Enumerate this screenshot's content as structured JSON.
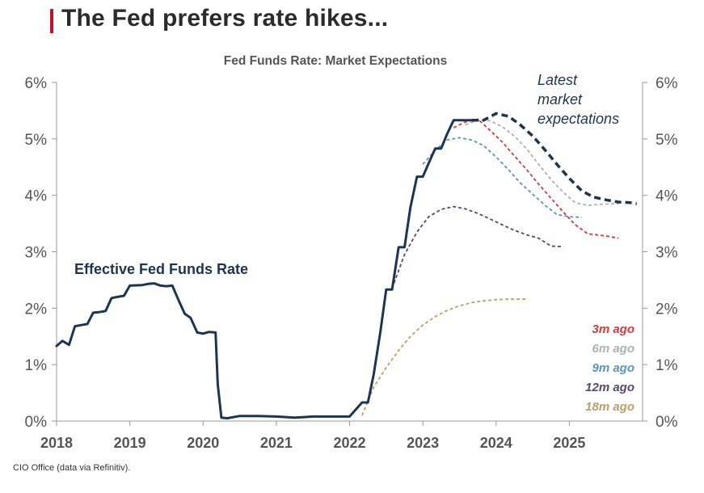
{
  "page": {
    "title": "The Fed prefers rate hikes...",
    "footer": "CIO Office (data via Refinitiv)."
  },
  "chart_data": {
    "type": "line",
    "title": "Fed Funds Rate: Market Expectations",
    "xlabel": "",
    "ylabel": "",
    "xlim": [
      2018,
      2026
    ],
    "ylim": [
      0,
      6
    ],
    "x_ticks": [
      2018,
      2019,
      2020,
      2021,
      2022,
      2023,
      2024,
      2025
    ],
    "x_tick_labels": [
      "2018",
      "2019",
      "2020",
      "2021",
      "2022",
      "2023",
      "2024",
      "2025"
    ],
    "y_ticks": [
      0,
      1,
      2,
      3,
      4,
      5,
      6
    ],
    "y_tick_labels": [
      "0%",
      "1%",
      "2%",
      "3%",
      "4%",
      "5%",
      "6%"
    ],
    "annotations": {
      "effr_label": "Effective Fed Funds Rate",
      "latest_label": [
        "Latest",
        "market",
        "expectations"
      ]
    },
    "series": [
      {
        "name": "Effective Fed Funds Rate",
        "color": "#1c3550",
        "style": "solid",
        "x": [
          2018.0,
          2018.08,
          2018.17,
          2018.25,
          2018.33,
          2018.42,
          2018.5,
          2018.58,
          2018.67,
          2018.75,
          2018.83,
          2018.92,
          2019.0,
          2019.17,
          2019.25,
          2019.33,
          2019.42,
          2019.5,
          2019.58,
          2019.67,
          2019.75,
          2019.83,
          2019.92,
          2020.0,
          2020.08,
          2020.17,
          2020.2,
          2020.25,
          2020.33,
          2020.5,
          2020.75,
          2021.0,
          2021.25,
          2021.5,
          2021.75,
          2022.0,
          2022.17,
          2022.25,
          2022.33,
          2022.42,
          2022.5,
          2022.58,
          2022.67,
          2022.75,
          2022.83,
          2022.92,
          2023.0,
          2023.08,
          2023.17,
          2023.25,
          2023.33,
          2023.42,
          2023.5,
          2023.58,
          2023.67,
          2023.75
        ],
        "values": [
          1.33,
          1.42,
          1.35,
          1.68,
          1.7,
          1.72,
          1.92,
          1.93,
          1.95,
          2.18,
          2.2,
          2.22,
          2.4,
          2.41,
          2.43,
          2.44,
          2.4,
          2.39,
          2.4,
          2.13,
          1.9,
          1.83,
          1.57,
          1.55,
          1.58,
          1.57,
          0.65,
          0.06,
          0.05,
          0.09,
          0.09,
          0.08,
          0.06,
          0.08,
          0.08,
          0.08,
          0.33,
          0.33,
          0.83,
          1.58,
          2.33,
          2.33,
          3.08,
          3.08,
          3.78,
          4.33,
          4.33,
          4.57,
          4.83,
          4.83,
          5.08,
          5.33,
          5.33,
          5.33,
          5.33,
          5.33
        ]
      },
      {
        "name": "Latest market expectations",
        "color": "#1c3550",
        "style": "dashed-bold",
        "x": [
          2023.67,
          2023.83,
          2024.0,
          2024.17,
          2024.33,
          2024.5,
          2024.67,
          2024.83,
          2025.0,
          2025.17,
          2025.33,
          2025.5,
          2025.67,
          2025.83,
          2025.92
        ],
        "values": [
          5.33,
          5.33,
          5.45,
          5.4,
          5.25,
          5.05,
          4.8,
          4.55,
          4.3,
          4.08,
          3.97,
          3.92,
          3.88,
          3.87,
          3.85
        ]
      },
      {
        "name": "3m ago",
        "color": "#d23b3b",
        "style": "dashed",
        "x": [
          2023.42,
          2023.58,
          2023.75,
          2023.92,
          2024.08,
          2024.25,
          2024.42,
          2024.58,
          2024.75,
          2024.92,
          2025.08,
          2025.25,
          2025.5,
          2025.67
        ],
        "values": [
          5.2,
          5.3,
          5.35,
          5.15,
          4.95,
          4.7,
          4.45,
          4.2,
          3.95,
          3.7,
          3.48,
          3.32,
          3.28,
          3.24
        ]
      },
      {
        "name": "6m ago",
        "color": "#a9b3ba",
        "style": "dashed",
        "x": [
          2023.58,
          2023.75,
          2023.92,
          2024.08,
          2024.25,
          2024.42,
          2024.58,
          2024.75,
          2024.92,
          2025.08,
          2025.25,
          2025.42,
          2025.58,
          2025.67
        ],
        "values": [
          5.25,
          5.33,
          5.32,
          5.22,
          5.05,
          4.82,
          4.55,
          4.28,
          4.05,
          3.87,
          3.82,
          3.84,
          3.85,
          3.85
        ]
      },
      {
        "name": "9m ago",
        "color": "#5a96b8",
        "style": "dashed",
        "x": [
          2023.0,
          2023.17,
          2023.33,
          2023.5,
          2023.67,
          2023.83,
          2024.0,
          2024.17,
          2024.33,
          2024.5,
          2024.67,
          2024.83,
          2025.0,
          2025.17
        ],
        "values": [
          4.55,
          4.8,
          4.98,
          5.02,
          4.98,
          4.88,
          4.68,
          4.45,
          4.22,
          4.02,
          3.82,
          3.66,
          3.62,
          3.61
        ]
      },
      {
        "name": "12m ago",
        "color": "#5a4570",
        "style": "dashed",
        "x": [
          2022.58,
          2022.75,
          2022.92,
          2023.08,
          2023.25,
          2023.42,
          2023.58,
          2023.75,
          2023.92,
          2024.08,
          2024.25,
          2024.42,
          2024.58,
          2024.75,
          2024.92
        ],
        "values": [
          2.35,
          2.95,
          3.35,
          3.62,
          3.75,
          3.8,
          3.76,
          3.68,
          3.58,
          3.48,
          3.38,
          3.3,
          3.24,
          3.1,
          3.09
        ]
      },
      {
        "name": "18m ago",
        "color": "#b9a068",
        "style": "dashed",
        "x": [
          2022.17,
          2022.33,
          2022.5,
          2022.67,
          2022.83,
          2023.0,
          2023.17,
          2023.33,
          2023.5,
          2023.67,
          2023.83,
          2024.0,
          2024.17,
          2024.33,
          2024.42
        ],
        "values": [
          0.1,
          0.6,
          0.95,
          1.25,
          1.5,
          1.7,
          1.85,
          1.96,
          2.04,
          2.1,
          2.13,
          2.15,
          2.16,
          2.16,
          2.16
        ]
      }
    ],
    "legend": [
      {
        "label": "3m ago",
        "color": "#d23b3b"
      },
      {
        "label": "6m ago",
        "color": "#a9b3ba"
      },
      {
        "label": "9m ago",
        "color": "#5a96b8"
      },
      {
        "label": "12m ago",
        "color": "#5a4570"
      },
      {
        "label": "18m ago",
        "color": "#b9a068"
      }
    ]
  }
}
